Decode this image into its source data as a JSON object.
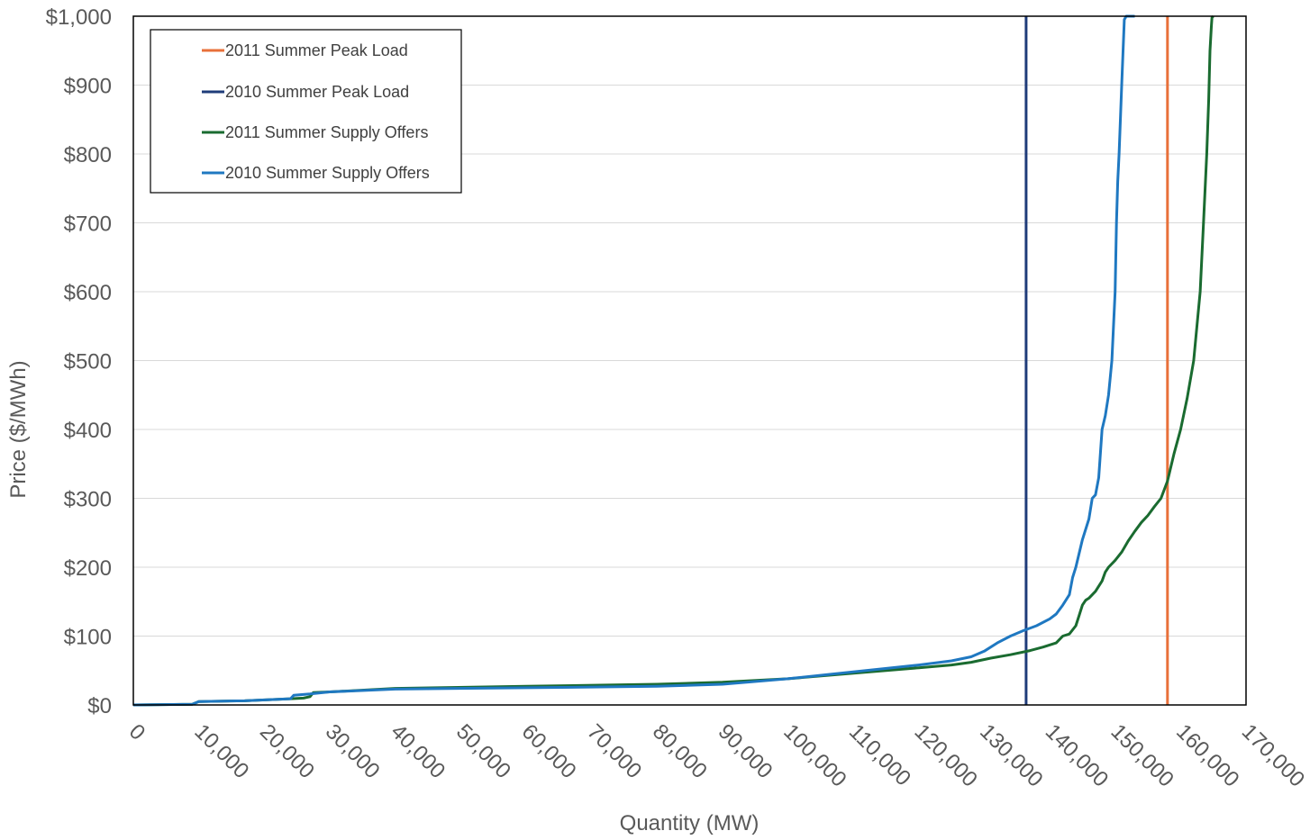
{
  "chart_data": {
    "type": "line",
    "title": "",
    "xlabel": "Quantity (MW)",
    "ylabel": "Price ($/MWh)",
    "xlim": [
      0,
      170000
    ],
    "ylim": [
      0,
      1000
    ],
    "x_ticks": [
      "0",
      "10,000",
      "20,000",
      "30,000",
      "40,000",
      "50,000",
      "60,000",
      "70,000",
      "80,000",
      "90,000",
      "100,000",
      "110,000",
      "120,000",
      "130,000",
      "140,000",
      "150,000",
      "160,000",
      "170,000"
    ],
    "y_ticks": [
      "$0",
      "$100",
      "$200",
      "$300",
      "$400",
      "$500",
      "$600",
      "$700",
      "$800",
      "$900",
      "$1,000"
    ],
    "grid": "horizontal",
    "legend_position": "top-left",
    "vertical_lines": [
      {
        "name": "2011 Summer Peak Load",
        "x": 158000,
        "color": "#E8703A"
      },
      {
        "name": "2010 Summer Peak Load",
        "x": 136400,
        "color": "#1F3C7A"
      }
    ],
    "series": [
      {
        "name": "2011 Summer Supply Offers",
        "color": "#1A6B30",
        "x": [
          0,
          9000,
          10000,
          17000,
          24000,
          26000,
          27000,
          27500,
          30000,
          40000,
          60000,
          80000,
          90000,
          100000,
          110000,
          120000,
          125000,
          128000,
          131000,
          134000,
          137000,
          139000,
          141000,
          142000,
          143000,
          144000,
          144500,
          145000,
          145500,
          146000,
          147000,
          148000,
          148500,
          149000,
          150000,
          151000,
          152000,
          153000,
          154000,
          155000,
          156000,
          157000,
          158000,
          159000,
          160000,
          161000,
          162000,
          163000,
          163500,
          164000,
          164300,
          164500,
          164700,
          164800,
          165000
        ],
        "y": [
          0,
          1,
          5,
          6,
          9,
          10,
          12,
          18,
          19,
          24,
          27,
          30,
          33,
          38,
          46,
          54,
          58,
          62,
          68,
          73,
          79,
          84,
          90,
          100,
          103,
          115,
          130,
          145,
          152,
          155,
          165,
          180,
          193,
          200,
          210,
          222,
          238,
          252,
          265,
          275,
          288,
          300,
          325,
          365,
          400,
          445,
          500,
          600,
          700,
          800,
          880,
          950,
          985,
          998,
          1000
        ]
      },
      {
        "name": "2010 Summer Supply Offers",
        "color": "#1F78C1",
        "x": [
          0,
          9000,
          10000,
          17000,
          24000,
          24500,
          27000,
          30000,
          40000,
          60000,
          80000,
          90000,
          100000,
          110000,
          120000,
          125000,
          128000,
          130000,
          132000,
          134000,
          136000,
          138000,
          140000,
          141000,
          142000,
          143000,
          143500,
          144000,
          145000,
          146000,
          146500,
          147000,
          147500,
          148000,
          148500,
          149000,
          149500,
          150000,
          150200,
          150400,
          150600,
          151000,
          151400,
          151700,
          152000,
          153000
        ],
        "y": [
          0,
          1,
          5,
          6,
          9,
          14,
          16,
          19,
          23,
          25,
          27,
          30,
          38,
          48,
          58,
          64,
          70,
          78,
          90,
          100,
          108,
          115,
          125,
          132,
          145,
          160,
          185,
          200,
          240,
          270,
          300,
          305,
          330,
          400,
          420,
          450,
          500,
          600,
          700,
          760,
          800,
          900,
          995,
          1000,
          1000,
          1000
        ]
      }
    ]
  },
  "legend": {
    "items": [
      {
        "label": "2011 Summer Peak Load",
        "color": "#E8703A"
      },
      {
        "label": "2010 Summer Peak Load",
        "color": "#1F3C7A"
      },
      {
        "label": "2011 Summer Supply Offers",
        "color": "#1A6B30"
      },
      {
        "label": "2010 Summer Supply Offers",
        "color": "#1F78C1"
      }
    ]
  }
}
